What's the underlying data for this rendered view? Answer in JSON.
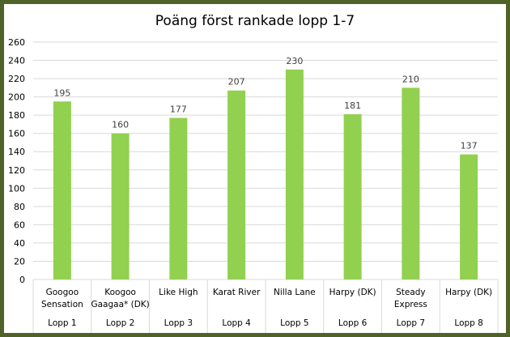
{
  "chart_data": {
    "type": "bar",
    "title": "Poäng först rankade lopp 1-7",
    "categories": [
      {
        "horse": [
          "Googoo",
          "Sensation"
        ],
        "race": "Lopp 1"
      },
      {
        "horse": [
          "Koogoo",
          "Gaagaa* (DK)"
        ],
        "race": "Lopp 2"
      },
      {
        "horse": [
          "Like High"
        ],
        "race": "Lopp 3"
      },
      {
        "horse": [
          "Karat River"
        ],
        "race": "Lopp 4"
      },
      {
        "horse": [
          "Nilla Lane"
        ],
        "race": "Lopp 5"
      },
      {
        "horse": [
          "Harpy (DK)"
        ],
        "race": "Lopp 6"
      },
      {
        "horse": [
          "Steady",
          "Express"
        ],
        "race": "Lopp 7"
      },
      {
        "horse": [
          "Harpy (DK)"
        ],
        "race": "Lopp 8"
      }
    ],
    "values": [
      195,
      160,
      177,
      207,
      230,
      181,
      210,
      137
    ],
    "ylim": [
      0,
      260
    ],
    "yticks": [
      0,
      20,
      40,
      60,
      80,
      100,
      120,
      140,
      160,
      180,
      200,
      220,
      240,
      260
    ],
    "grid": true,
    "legend": "none",
    "bar_color": "#92d050",
    "xlabel": "",
    "ylabel": ""
  }
}
